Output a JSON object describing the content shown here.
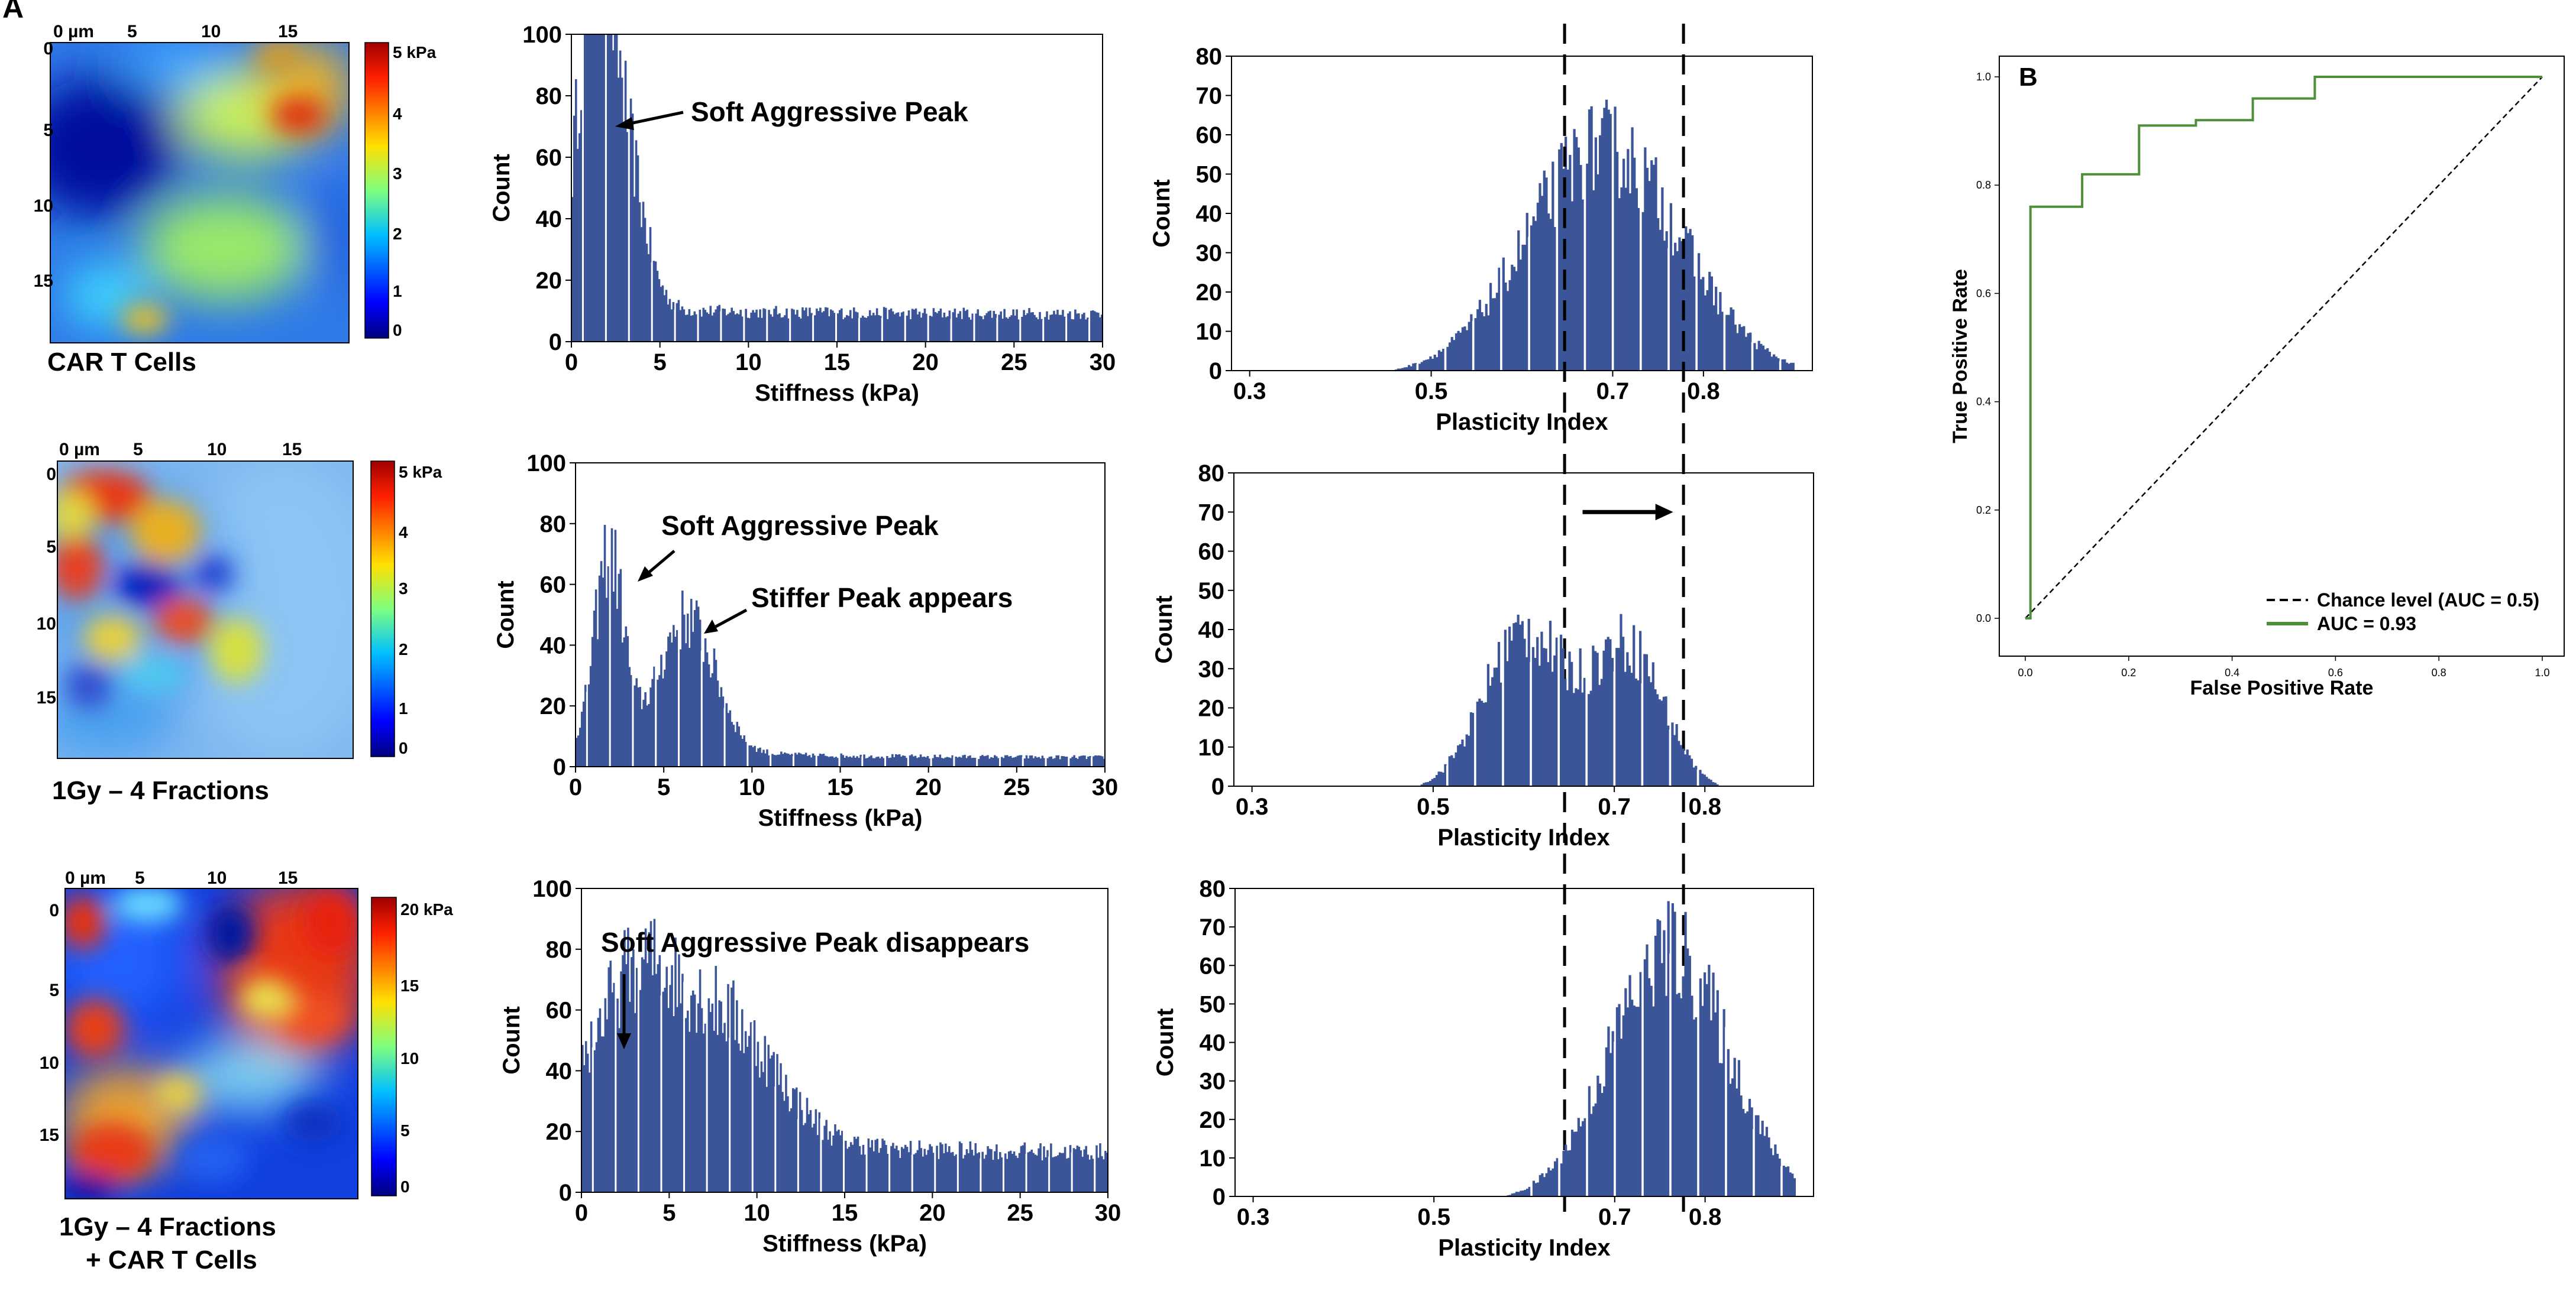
{
  "panel_labels": {
    "a": "A",
    "b": "B"
  },
  "maps": [
    {
      "x_ticks": [
        "0 µm",
        "5",
        "10",
        "15"
      ],
      "y_ticks": [
        "0",
        "5",
        "10",
        "15"
      ],
      "colorbar_ticks": [
        "5 kPa",
        "4",
        "3",
        "2",
        "1",
        "0"
      ],
      "label_lines": [
        "CAR T Cells"
      ]
    },
    {
      "x_ticks": [
        "0 µm",
        "5",
        "10",
        "15"
      ],
      "y_ticks": [
        "0",
        "5",
        "10",
        "15"
      ],
      "colorbar_ticks": [
        "5 kPa",
        "4",
        "3",
        "2",
        "1",
        "0"
      ],
      "label_lines": [
        "1Gy – 4 Fractions"
      ]
    },
    {
      "x_ticks": [
        "0 µm",
        "5",
        "10",
        "15"
      ],
      "y_ticks": [
        "0",
        "5",
        "10",
        "15"
      ],
      "colorbar_ticks": [
        "20 kPa",
        "15",
        "10",
        "5",
        "0"
      ],
      "label_lines": [
        "1Gy – 4 Fractions",
        "+ CAR T Cells"
      ]
    }
  ],
  "chart_data": [
    {
      "type": "bar",
      "panel": "A",
      "row": 1,
      "xlabel": "Stiffness (kPa)",
      "ylabel": "Count",
      "xlim": [
        0,
        30
      ],
      "ylim": [
        0,
        100
      ],
      "xticks": [
        0,
        5,
        10,
        15,
        20,
        25,
        30
      ],
      "yticks": [
        0,
        20,
        40,
        60,
        80,
        100
      ],
      "annotations": [
        "Soft Aggressive Peak"
      ],
      "peaks": [
        [
          1.2,
          92,
          0.9
        ],
        [
          2.7,
          58,
          1.2
        ]
      ],
      "tail": 9,
      "decay": 2.5
    },
    {
      "type": "bar",
      "panel": "A",
      "row": 2,
      "xlabel": "Stiffness (kPa)",
      "ylabel": "Count",
      "xlim": [
        0,
        30
      ],
      "ylim": [
        0,
        100
      ],
      "xticks": [
        0,
        5,
        10,
        15,
        20,
        25,
        30
      ],
      "yticks": [
        0,
        20,
        40,
        60,
        80,
        100
      ],
      "annotations": [
        "Soft Aggressive Peak",
        "Stiffer Peak appears"
      ],
      "peaks": [
        [
          1.9,
          64,
          0.8
        ],
        [
          6.3,
          44,
          1.6
        ]
      ],
      "tail": 3,
      "decay": 4
    },
    {
      "type": "bar",
      "panel": "A",
      "row": 3,
      "xlabel": "Stiffness (kPa)",
      "ylabel": "Count",
      "xlim": [
        0,
        30
      ],
      "ylim": [
        0,
        100
      ],
      "xticks": [
        0,
        5,
        10,
        15,
        20,
        25,
        30
      ],
      "yticks": [
        0,
        20,
        40,
        60,
        80,
        100
      ],
      "annotations": [
        "Soft Aggressive Peak disappears"
      ],
      "peaks": [
        [
          3,
          44,
          2.2
        ],
        [
          8,
          40,
          3
        ]
      ],
      "tail": 13,
      "decay": 12
    },
    {
      "type": "bar",
      "panel": "A",
      "row": 1,
      "xlabel": "Plasticity Index",
      "ylabel": "Count",
      "xlim": [
        0.28,
        0.92
      ],
      "ylim": [
        0,
        80
      ],
      "xticks": [
        0.3,
        0.5,
        0.7,
        0.8
      ],
      "xtick_labels": [
        "0.3",
        "0.5",
        "0.7",
        "0.8"
      ],
      "yticks": [
        0,
        10,
        20,
        30,
        40,
        50,
        60,
        70,
        80
      ],
      "dashed_lines": [
        0.647,
        0.778
      ],
      "peaks": [
        [
          0.69,
          58,
          0.085
        ]
      ]
    },
    {
      "type": "bar",
      "panel": "A",
      "row": 2,
      "xlabel": "Plasticity Index",
      "ylabel": "Count",
      "xlim": [
        0.28,
        0.92
      ],
      "ylim": [
        0,
        80
      ],
      "xticks": [
        0.3,
        0.5,
        0.7,
        0.8
      ],
      "xtick_labels": [
        "0.3",
        "0.5",
        "0.7",
        "0.8"
      ],
      "yticks": [
        0,
        10,
        20,
        30,
        40,
        50,
        60,
        70,
        80
      ],
      "dashed_lines": [
        0.647,
        0.778
      ],
      "arrow": {
        "from": 0.665,
        "to": 0.765,
        "y": 70
      },
      "peaks": [
        [
          0.6,
          40,
          0.045
        ],
        [
          0.715,
          36,
          0.04
        ]
      ]
    },
    {
      "type": "bar",
      "panel": "A",
      "row": 3,
      "xlabel": "Plasticity Index",
      "ylabel": "Count",
      "xlim": [
        0.28,
        0.92
      ],
      "ylim": [
        0,
        80
      ],
      "xticks": [
        0.3,
        0.5,
        0.7,
        0.8
      ],
      "xtick_labels": [
        "0.3",
        "0.5",
        "0.7",
        "0.8"
      ],
      "yticks": [
        0,
        10,
        20,
        30,
        40,
        50,
        60,
        70,
        80
      ],
      "dashed_lines": [
        0.647,
        0.778
      ],
      "peaks": [
        [
          0.76,
          65,
          0.065
        ]
      ]
    },
    {
      "type": "line",
      "panel": "B",
      "xlabel": "False Positive Rate",
      "ylabel": "True Positive Rate",
      "xlim": [
        0,
        1
      ],
      "ylim": [
        0,
        1
      ],
      "xticks": [
        0.0,
        0.2,
        0.4,
        0.6,
        0.8,
        1.0
      ],
      "xtick_labels": [
        "0.0",
        "0.2",
        "0.4",
        "0.6",
        "0.8",
        "1.0"
      ],
      "yticks": [
        0.0,
        0.2,
        0.4,
        0.6,
        0.8,
        1.0
      ],
      "ytick_labels": [
        "0.0",
        "0.2",
        "0.4",
        "0.6",
        "0.8",
        "1.0"
      ],
      "series": [
        {
          "name": "Chance level (AUC = 0.5)",
          "color": "#000000",
          "dashed": true,
          "x": [
            0,
            1
          ],
          "y": [
            0,
            1
          ]
        },
        {
          "name": "AUC = 0.93",
          "color": "#4e8f3a",
          "dashed": false,
          "x": [
            0,
            0.01,
            0.01,
            0.11,
            0.11,
            0.22,
            0.22,
            0.33,
            0.33,
            0.44,
            0.44,
            0.56,
            0.56,
            1.0
          ],
          "y": [
            0,
            0,
            0.76,
            0.76,
            0.82,
            0.82,
            0.91,
            0.91,
            0.92,
            0.92,
            0.96,
            0.96,
            1.0,
            1.0
          ]
        }
      ],
      "legend": "lower-right"
    }
  ],
  "colors": {
    "bar": "#3b5598",
    "axis": "#000000",
    "gap": "#ffffff"
  }
}
